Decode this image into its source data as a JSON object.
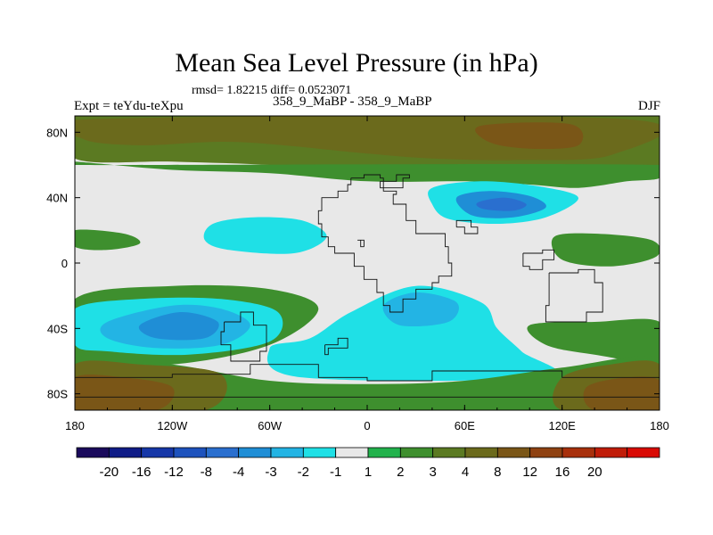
{
  "chart_data": {
    "type": "heatmap",
    "title": "Mean Sea Level Pressure (in hPa)",
    "stats_line": "rmsd= 1.82215 diff= 0.0523071",
    "experiment_label": "Expt = teYdu-teXpu",
    "subtitle": "358_9_MaBP - 358_9_MaBP",
    "season": "DJF",
    "x_ticks": [
      {
        "value": -180,
        "label": "180"
      },
      {
        "value": -120,
        "label": "120W"
      },
      {
        "value": -60,
        "label": "60W"
      },
      {
        "value": 0,
        "label": "0"
      },
      {
        "value": 60,
        "label": "60E"
      },
      {
        "value": 120,
        "label": "120E"
      },
      {
        "value": 180,
        "label": "180"
      }
    ],
    "y_ticks": [
      {
        "value": 80,
        "label": "80N"
      },
      {
        "value": 40,
        "label": "40N"
      },
      {
        "value": 0,
        "label": "0"
      },
      {
        "value": -40,
        "label": "40S"
      },
      {
        "value": -80,
        "label": "80S"
      }
    ],
    "xlim": [
      -180,
      180
    ],
    "ylim": [
      -90,
      90
    ],
    "colorbar": {
      "colors": [
        "#1a0a5c",
        "#0f1c87",
        "#1637a8",
        "#1d52bd",
        "#2a6fcf",
        "#1f8ed6",
        "#23b4e4",
        "#1fe0e6",
        "#e8e8e8",
        "#22b24c",
        "#3e8f2e",
        "#5b7a22",
        "#6b6a1c",
        "#7a5617",
        "#8f4212",
        "#a8300c",
        "#c01c08",
        "#d90a04"
      ],
      "labels": [
        "-20",
        "-16",
        "-12",
        "-8",
        "-4",
        "-3",
        "-2",
        "-1",
        "1",
        "2",
        "3",
        "4",
        "8",
        "12",
        "16",
        "20"
      ]
    },
    "fields": [
      {
        "name": "north polar positive band",
        "level": 3,
        "pts": [
          [
            -180,
            90
          ],
          [
            180,
            90
          ],
          [
            180,
            58
          ],
          [
            120,
            55
          ],
          [
            60,
            52
          ],
          [
            0,
            55
          ],
          [
            -60,
            60
          ],
          [
            -120,
            62
          ],
          [
            -180,
            64
          ]
        ]
      },
      {
        "name": "north polar positive core",
        "level": 4,
        "pts": [
          [
            -170,
            88
          ],
          [
            160,
            88
          ],
          [
            150,
            66
          ],
          [
            90,
            63
          ],
          [
            40,
            64
          ],
          [
            0,
            67
          ],
          [
            -80,
            74
          ],
          [
            -140,
            72
          ],
          [
            -175,
            76
          ]
        ]
      },
      {
        "name": "north polar positive maximum",
        "level": 5,
        "pts": [
          [
            70,
            84
          ],
          [
            125,
            85
          ],
          [
            130,
            72
          ],
          [
            100,
            70
          ],
          [
            75,
            74
          ]
        ]
      },
      {
        "name": "mid-latitude positive belt",
        "level": 2,
        "pts": [
          [
            -180,
            62
          ],
          [
            -120,
            57
          ],
          [
            -60,
            55
          ],
          [
            0,
            50
          ],
          [
            60,
            50
          ],
          [
            100,
            48
          ],
          [
            130,
            46
          ],
          [
            160,
            50
          ],
          [
            180,
            52
          ],
          [
            180,
            60
          ],
          [
            -180,
            60
          ]
        ]
      },
      {
        "name": "north pacific low",
        "level": -1,
        "pts": [
          [
            40,
            46
          ],
          [
            70,
            50
          ],
          [
            105,
            47
          ],
          [
            130,
            40
          ],
          [
            110,
            28
          ],
          [
            80,
            24
          ],
          [
            50,
            27
          ],
          [
            40,
            36
          ]
        ]
      },
      {
        "name": "north pacific low inner",
        "level": -3,
        "pts": [
          [
            55,
            40
          ],
          [
            75,
            44
          ],
          [
            100,
            41
          ],
          [
            110,
            34
          ],
          [
            90,
            28
          ],
          [
            65,
            29
          ]
        ]
      },
      {
        "name": "north pacific low core",
        "level": -4,
        "pts": [
          [
            68,
            37
          ],
          [
            85,
            40
          ],
          [
            98,
            36
          ],
          [
            90,
            32
          ],
          [
            72,
            33
          ]
        ]
      },
      {
        "name": "central low",
        "level": -1,
        "pts": [
          [
            -95,
            24
          ],
          [
            -70,
            28
          ],
          [
            -40,
            26
          ],
          [
            -25,
            16
          ],
          [
            -45,
            6
          ],
          [
            -85,
            8
          ],
          [
            -100,
            14
          ]
        ]
      },
      {
        "name": "eastern positive",
        "level": 2,
        "pts": [
          [
            115,
            16
          ],
          [
            140,
            18
          ],
          [
            175,
            14
          ],
          [
            178,
            4
          ],
          [
            150,
            -2
          ],
          [
            120,
            2
          ]
        ]
      },
      {
        "name": "western positive",
        "level": 2,
        "pts": [
          [
            -180,
            20
          ],
          [
            -150,
            18
          ],
          [
            -140,
            12
          ],
          [
            -160,
            8
          ],
          [
            -180,
            10
          ]
        ]
      },
      {
        "name": "southern positive belt",
        "level": 2,
        "pts": [
          [
            -180,
            -22
          ],
          [
            -120,
            -14
          ],
          [
            -60,
            -16
          ],
          [
            -30,
            -28
          ],
          [
            -60,
            -50
          ],
          [
            -120,
            -62
          ],
          [
            -180,
            -60
          ]
        ]
      },
      {
        "name": "south atlantic low",
        "level": -1,
        "pts": [
          [
            -180,
            -28
          ],
          [
            -140,
            -22
          ],
          [
            -90,
            -22
          ],
          [
            -55,
            -30
          ],
          [
            -60,
            -48
          ],
          [
            -110,
            -56
          ],
          [
            -160,
            -54
          ],
          [
            -180,
            -50
          ]
        ]
      },
      {
        "name": "south atlantic low inner",
        "level": -2,
        "pts": [
          [
            -160,
            -36
          ],
          [
            -120,
            -26
          ],
          [
            -90,
            -28
          ],
          [
            -72,
            -38
          ],
          [
            -90,
            -50
          ],
          [
            -130,
            -52
          ],
          [
            -160,
            -46
          ]
        ]
      },
      {
        "name": "south atlantic low core",
        "level": -3,
        "pts": [
          [
            -140,
            -38
          ],
          [
            -115,
            -30
          ],
          [
            -92,
            -36
          ],
          [
            -100,
            -46
          ],
          [
            -130,
            -46
          ]
        ]
      },
      {
        "name": "central southern low",
        "level": -1,
        "pts": [
          [
            -10,
            -30
          ],
          [
            30,
            -14
          ],
          [
            70,
            -24
          ],
          [
            80,
            -40
          ],
          [
            95,
            -54
          ],
          [
            110,
            -70
          ],
          [
            -40,
            -70
          ],
          [
            -60,
            -52
          ],
          [
            -35,
            -46
          ]
        ]
      },
      {
        "name": "central southern low inner",
        "level": -2,
        "pts": [
          [
            10,
            -26
          ],
          [
            30,
            -18
          ],
          [
            55,
            -24
          ],
          [
            50,
            -36
          ],
          [
            20,
            -38
          ]
        ]
      },
      {
        "name": "southeast positive",
        "level": 2,
        "pts": [
          [
            100,
            -38
          ],
          [
            140,
            -36
          ],
          [
            180,
            -36
          ],
          [
            180,
            -60
          ],
          [
            140,
            -56
          ],
          [
            110,
            -50
          ]
        ]
      },
      {
        "name": "antarctic positive band",
        "level": 2,
        "pts": [
          [
            -180,
            -58
          ],
          [
            -120,
            -62
          ],
          [
            -60,
            -72
          ],
          [
            0,
            -74
          ],
          [
            60,
            -72
          ],
          [
            120,
            -64
          ],
          [
            180,
            -58
          ],
          [
            180,
            -90
          ],
          [
            -180,
            -90
          ]
        ]
      },
      {
        "name": "antarctic positive west",
        "level": 4,
        "pts": [
          [
            -180,
            -62
          ],
          [
            -140,
            -62
          ],
          [
            -90,
            -68
          ],
          [
            -100,
            -90
          ],
          [
            -180,
            -90
          ]
        ]
      },
      {
        "name": "antarctic positive west core",
        "level": 5,
        "pts": [
          [
            -180,
            -70
          ],
          [
            -150,
            -70
          ],
          [
            -120,
            -76
          ],
          [
            -130,
            -90
          ],
          [
            -180,
            -90
          ]
        ]
      },
      {
        "name": "antarctic positive east",
        "level": 4,
        "pts": [
          [
            120,
            -70
          ],
          [
            150,
            -62
          ],
          [
            180,
            -62
          ],
          [
            180,
            -90
          ],
          [
            120,
            -90
          ]
        ]
      },
      {
        "name": "antarctic positive east core",
        "level": 5,
        "pts": [
          [
            135,
            -76
          ],
          [
            160,
            -70
          ],
          [
            180,
            -72
          ],
          [
            180,
            -90
          ],
          [
            140,
            -90
          ]
        ]
      }
    ],
    "coastlines": [
      [
        [
          -10,
          52
        ],
        [
          -2,
          54
        ],
        [
          8,
          52
        ],
        [
          10,
          44
        ],
        [
          18,
          42
        ],
        [
          16,
          36
        ],
        [
          24,
          34
        ],
        [
          24,
          26
        ],
        [
          28,
          26
        ],
        [
          30,
          18
        ],
        [
          45,
          18
        ],
        [
          48,
          10
        ],
        [
          50,
          0
        ],
        [
          52,
          -8
        ],
        [
          44,
          -12
        ],
        [
          40,
          -16
        ],
        [
          30,
          -22
        ],
        [
          22,
          -30
        ],
        [
          14,
          -26
        ],
        [
          10,
          -18
        ],
        [
          6,
          -10
        ],
        [
          -2,
          -2
        ],
        [
          -8,
          6
        ],
        [
          -20,
          10
        ],
        [
          -24,
          16
        ],
        [
          -28,
          24
        ],
        [
          -30,
          32
        ],
        [
          -28,
          40
        ],
        [
          -18,
          44
        ],
        [
          -12,
          48
        ],
        [
          -10,
          52
        ]
      ],
      [
        [
          55,
          22
        ],
        [
          60,
          18
        ],
        [
          68,
          22
        ],
        [
          64,
          26
        ],
        [
          58,
          26
        ],
        [
          55,
          22
        ]
      ],
      [
        [
          96,
          6
        ],
        [
          108,
          8
        ],
        [
          115,
          2
        ],
        [
          108,
          -4
        ],
        [
          100,
          -2
        ],
        [
          96,
          6
        ]
      ],
      [
        [
          112,
          -6
        ],
        [
          130,
          -4
        ],
        [
          140,
          -12
        ],
        [
          145,
          -30
        ],
        [
          135,
          -36
        ],
        [
          118,
          -36
        ],
        [
          110,
          -26
        ],
        [
          112,
          -6
        ]
      ],
      [
        [
          -88,
          -36
        ],
        [
          -78,
          -30
        ],
        [
          -70,
          -38
        ],
        [
          -62,
          -54
        ],
        [
          -66,
          -60
        ],
        [
          -76,
          -60
        ],
        [
          -84,
          -50
        ],
        [
          -90,
          -42
        ],
        [
          -88,
          -36
        ]
      ],
      [
        [
          -180,
          -70
        ],
        [
          -120,
          -68
        ],
        [
          -72,
          -62
        ],
        [
          -30,
          -70
        ],
        [
          0,
          -72
        ],
        [
          40,
          -66
        ],
        [
          80,
          -66
        ],
        [
          120,
          -70
        ],
        [
          180,
          -72
        ],
        [
          180,
          -82
        ],
        [
          -180,
          -82
        ],
        [
          -180,
          -70
        ]
      ],
      [
        [
          -26,
          -50
        ],
        [
          -18,
          -46
        ],
        [
          -12,
          -52
        ],
        [
          -24,
          -56
        ],
        [
          -26,
          -50
        ]
      ],
      [
        [
          8,
          50
        ],
        [
          18,
          54
        ],
        [
          26,
          52
        ],
        [
          22,
          46
        ],
        [
          10,
          46
        ],
        [
          8,
          50
        ]
      ],
      [
        [
          -2,
          10
        ],
        [
          -4,
          14
        ],
        [
          -6,
          14
        ],
        [
          -2,
          10
        ]
      ]
    ]
  }
}
